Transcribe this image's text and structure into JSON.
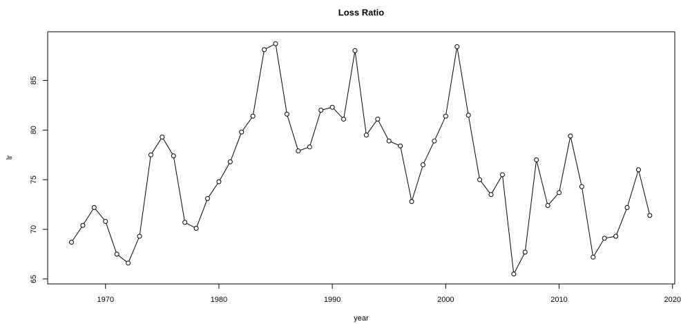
{
  "chart_data": {
    "type": "line",
    "title": "Loss Ratio",
    "x_label": "year",
    "y_label": "lr",
    "x": [
      1967,
      1968,
      1969,
      1970,
      1971,
      1972,
      1973,
      1974,
      1975,
      1976,
      1977,
      1978,
      1979,
      1980,
      1981,
      1982,
      1983,
      1984,
      1985,
      1986,
      1987,
      1988,
      1989,
      1990,
      1991,
      1992,
      1993,
      1994,
      1995,
      1996,
      1997,
      1998,
      1999,
      2000,
      2001,
      2002,
      2003,
      2004,
      2005,
      2006,
      2007,
      2008,
      2009,
      2010,
      2011,
      2012,
      2013,
      2014,
      2015,
      2016,
      2017,
      2018
    ],
    "values": [
      68.7,
      70.4,
      72.2,
      70.8,
      67.5,
      66.6,
      69.3,
      77.5,
      79.3,
      77.4,
      70.7,
      70.1,
      73.1,
      74.8,
      76.8,
      79.8,
      81.4,
      88.1,
      88.7,
      81.6,
      77.9,
      78.3,
      82.0,
      82.3,
      81.1,
      88.0,
      79.5,
      81.1,
      78.9,
      78.4,
      72.8,
      76.5,
      78.9,
      81.4,
      88.4,
      81.5,
      75.0,
      73.5,
      75.5,
      65.5,
      67.7,
      77.0,
      72.4,
      73.7,
      79.4,
      74.3,
      67.2,
      69.1,
      69.3,
      72.2,
      76.0,
      71.4
    ],
    "color": "#000000",
    "xlim": [
      1964.9,
      2020.2
    ],
    "xticks": [
      1970,
      1980,
      1990,
      2000,
      2010,
      2020
    ],
    "ylim": [
      64.5,
      89.9
    ],
    "yticks": [
      65,
      70,
      75,
      80,
      85
    ]
  }
}
